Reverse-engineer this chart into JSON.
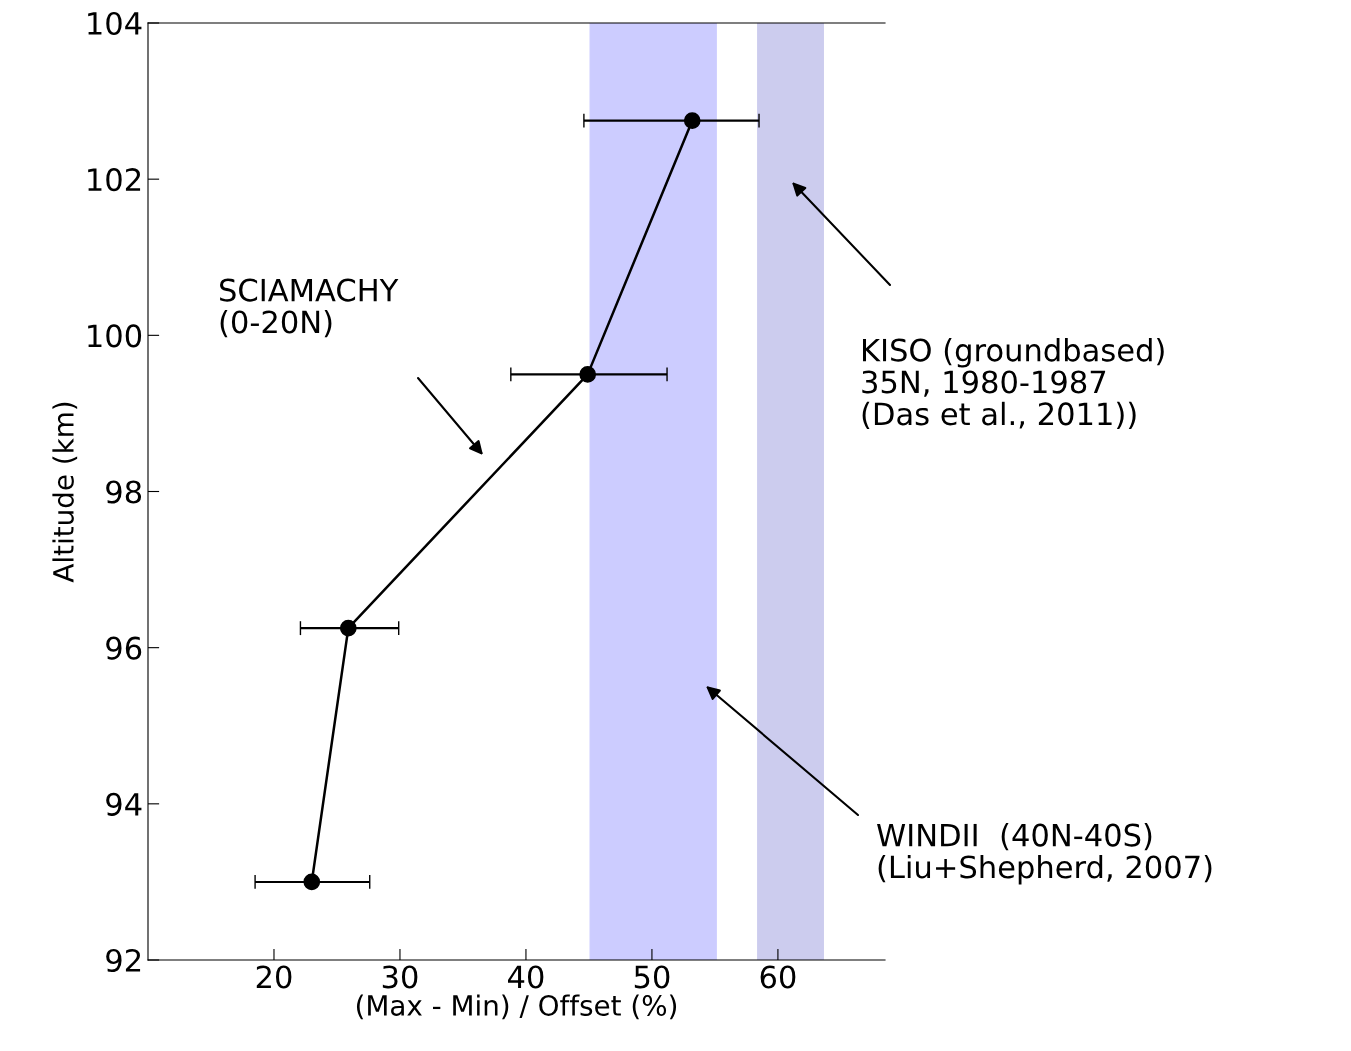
{
  "chart_data": {
    "type": "line",
    "xlabel": "(Max - Min) / Offset (%)",
    "ylabel": "Altitude (km)",
    "x": [
      23.0,
      25.9,
      44.9,
      53.2
    ],
    "series": [
      {
        "color": "#000000",
        "values": [
          93.0,
          96.25,
          99.5,
          102.75
        ],
        "xerrors": [
          [
            18.5,
            27.6
          ],
          [
            22.1,
            29.9
          ],
          [
            38.8,
            51.2
          ],
          [
            44.6,
            58.5
          ]
        ]
      }
    ],
    "marker": "circle",
    "line_style": "solid",
    "xlim": [
      10,
      68.5
    ],
    "ylim": [
      92,
      104
    ],
    "xticks": [
      20,
      30,
      40,
      50,
      60
    ],
    "yticks": [
      92,
      94,
      96,
      98,
      100,
      102,
      104
    ],
    "grid": false,
    "bands": [
      {
        "axis": "x",
        "from": 45.1,
        "to": 55.1,
        "color": "#ccccff"
      },
      {
        "axis": "x",
        "from": 58.4,
        "to": 63.6,
        "color": "#ccccee"
      }
    ],
    "annotations": [
      "SCIAMACHY\n(0-20N)",
      "KISO (groundbased)\n35N, 1980-1987\n(Das et al., 2011))",
      "WINDII  (40N-40S)\n(Liu+Shepherd, 2007)"
    ]
  }
}
